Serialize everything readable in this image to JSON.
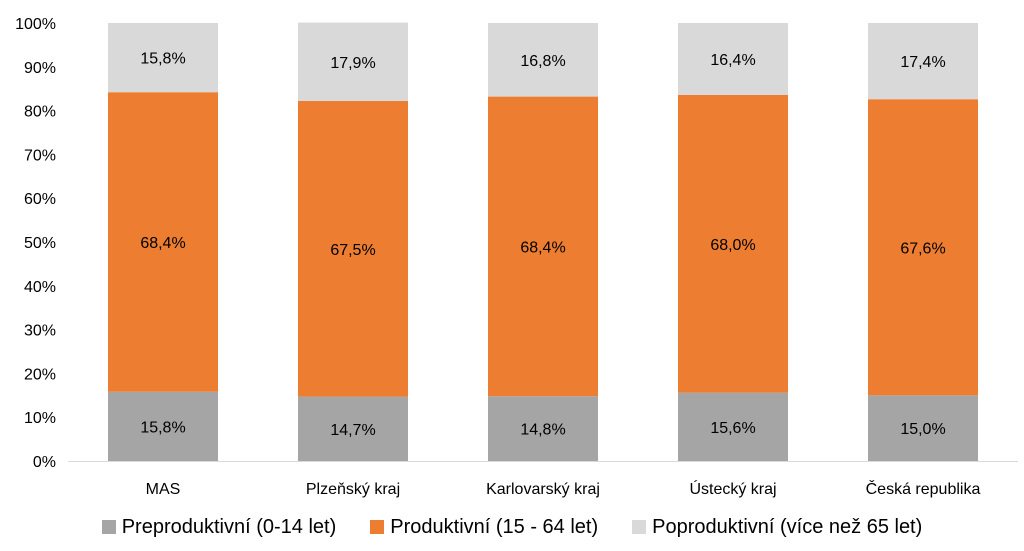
{
  "chart_data": {
    "type": "bar",
    "stacked": true,
    "categories": [
      "MAS",
      "Plzeňský kraj",
      "Karlovarský kraj",
      "Ústecký kraj",
      "Česká republika"
    ],
    "series": [
      {
        "name": "Preproduktivní (0-14 let)",
        "color": "#a5a5a5",
        "values": [
          15.8,
          14.7,
          14.8,
          15.6,
          15.0
        ],
        "labels": [
          "15,8%",
          "14,7%",
          "14,8%",
          "15,6%",
          "15,0%"
        ]
      },
      {
        "name": "Produktivní (15 - 64 let)",
        "color": "#ed7d31",
        "values": [
          68.4,
          67.5,
          68.4,
          68.0,
          67.6
        ],
        "labels": [
          "68,4%",
          "67,5%",
          "68,4%",
          "68,0%",
          "67,6%"
        ]
      },
      {
        "name": "Poproduktivní (více než 65 let)",
        "color": "#d9d9d9",
        "values": [
          15.8,
          17.9,
          16.8,
          16.4,
          17.4
        ],
        "labels": [
          "15,8%",
          "17,9%",
          "16,8%",
          "16,4%",
          "17,4%"
        ]
      }
    ],
    "yticks": [
      "0%",
      "10%",
      "20%",
      "30%",
      "40%",
      "50%",
      "60%",
      "70%",
      "80%",
      "90%",
      "100%"
    ],
    "ylim": [
      0,
      100
    ],
    "grid": false,
    "legend_position": "bottom"
  }
}
